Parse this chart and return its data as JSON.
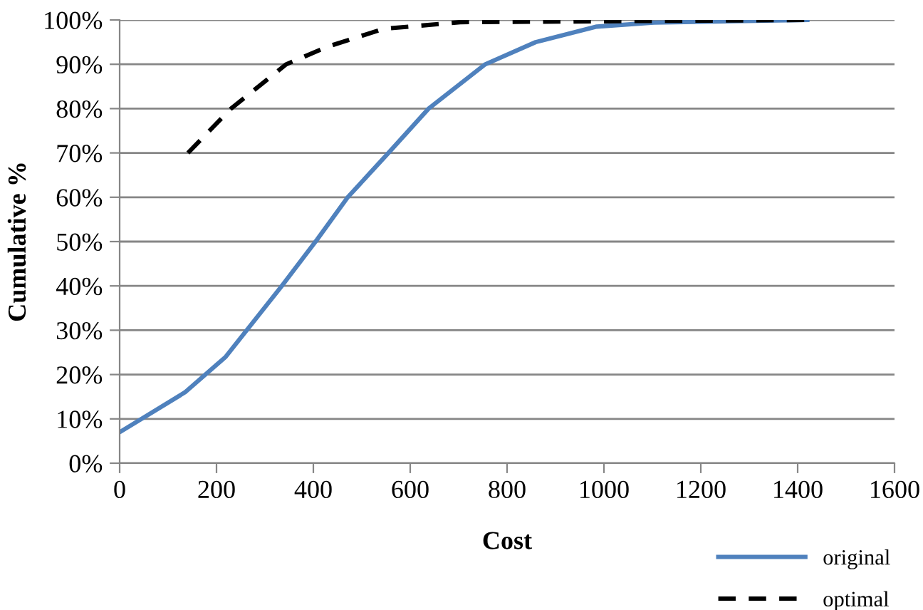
{
  "chart_data": {
    "type": "line",
    "xlabel": "Cost",
    "ylabel": "Cumulative %",
    "xlim": [
      0,
      1600
    ],
    "xticks": [
      0,
      200,
      400,
      600,
      800,
      1000,
      1200,
      1400,
      1600
    ],
    "ylim": [
      0,
      100
    ],
    "yticks": [
      {
        "value": 0,
        "label": "0%"
      },
      {
        "value": 10,
        "label": "10%"
      },
      {
        "value": 20,
        "label": "20%"
      },
      {
        "value": 30,
        "label": "30%"
      },
      {
        "value": 40,
        "label": "40%"
      },
      {
        "value": 50,
        "label": "50%"
      },
      {
        "value": 60,
        "label": "60%"
      },
      {
        "value": 70,
        "label": "70%"
      },
      {
        "value": 80,
        "label": "80%"
      },
      {
        "value": 90,
        "label": "90%"
      },
      {
        "value": 100,
        "label": "100%"
      }
    ],
    "grid": "y",
    "legend": "bottom right",
    "marker": "none",
    "series": [
      {
        "name": "original",
        "color": "#4f81bd",
        "line_style": "solid",
        "x": [
          0,
          135,
          219,
          335,
          408,
          471,
          555,
          638,
          755,
          859,
          985,
          1103,
          1420
        ],
        "values": [
          7,
          16,
          24,
          40,
          50.5,
          60,
          70,
          80,
          90,
          95,
          98.5,
          99.4,
          100
        ]
      },
      {
        "name": "optimal",
        "color": "#000000",
        "line_style": "dashed",
        "x": [
          141,
          230,
          344,
          430,
          545,
          703,
          1423
        ],
        "values": [
          70,
          80,
          90,
          94,
          98,
          99.5,
          100
        ]
      }
    ]
  }
}
